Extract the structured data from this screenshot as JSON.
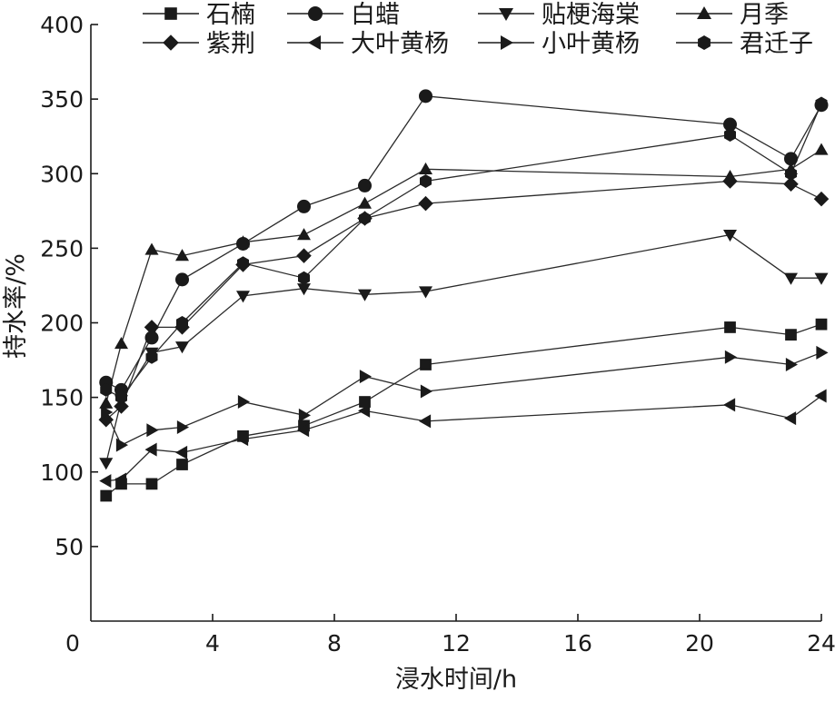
{
  "chart_data": {
    "type": "line",
    "xlabel": "浸水时间/h",
    "ylabel": "持水率/%",
    "xlim": [
      0,
      24
    ],
    "ylim": [
      0,
      400
    ],
    "x_ticks": [
      0,
      4,
      8,
      12,
      16,
      20,
      24
    ],
    "y_ticks": [
      50,
      100,
      150,
      200,
      250,
      300,
      350,
      400
    ],
    "grid": false,
    "legend_position": "top",
    "series": [
      {
        "name": "石楠",
        "marker": "square",
        "x": [
          0.5,
          1,
          2,
          3,
          5,
          7,
          9,
          11,
          21,
          23,
          24
        ],
        "y": [
          84,
          92,
          92,
          105,
          124,
          131,
          147,
          172,
          197,
          192,
          199
        ]
      },
      {
        "name": "白蜡",
        "marker": "circle",
        "x": [
          0.5,
          1,
          2,
          3,
          5,
          7,
          9,
          11,
          21,
          23,
          24
        ],
        "y": [
          160,
          155,
          190,
          229,
          253,
          278,
          292,
          352,
          333,
          310,
          346
        ]
      },
      {
        "name": "贴梗海棠",
        "marker": "triangle-down",
        "x": [
          0.5,
          1,
          2,
          3,
          5,
          7,
          9,
          11,
          21,
          23,
          24
        ],
        "y": [
          106,
          148,
          180,
          184,
          218,
          223,
          219,
          221,
          259,
          230,
          230
        ]
      },
      {
        "name": "月季",
        "marker": "triangle-up",
        "x": [
          0.5,
          1,
          2,
          3,
          5,
          7,
          9,
          11,
          21,
          23,
          24
        ],
        "y": [
          146,
          186,
          249,
          245,
          254,
          259,
          280,
          303,
          298,
          303,
          316
        ]
      },
      {
        "name": "紫荆",
        "marker": "diamond",
        "x": [
          0.5,
          1,
          2,
          3,
          5,
          7,
          9,
          11,
          21,
          23,
          24
        ],
        "y": [
          135,
          144,
          197,
          197,
          239,
          245,
          270,
          280,
          295,
          293,
          283
        ]
      },
      {
        "name": "大叶黄杨",
        "marker": "triangle-left",
        "x": [
          0.5,
          1,
          2,
          3,
          5,
          7,
          9,
          11,
          21,
          23,
          24
        ],
        "y": [
          94,
          95,
          115,
          113,
          122,
          128,
          141,
          134,
          145,
          136,
          151
        ]
      },
      {
        "name": "小叶黄杨",
        "marker": "triangle-right",
        "x": [
          0.5,
          1,
          2,
          3,
          5,
          7,
          9,
          11,
          21,
          23,
          24
        ],
        "y": [
          140,
          118,
          128,
          130,
          147,
          138,
          164,
          154,
          177,
          172,
          180
        ]
      },
      {
        "name": "君迁子",
        "marker": "hexagon",
        "x": [
          0.5,
          1,
          2,
          3,
          5,
          7,
          9,
          11,
          21,
          23,
          24
        ],
        "y": [
          155,
          150,
          177,
          200,
          240,
          230,
          270,
          295,
          326,
          300,
          347
        ]
      }
    ]
  }
}
